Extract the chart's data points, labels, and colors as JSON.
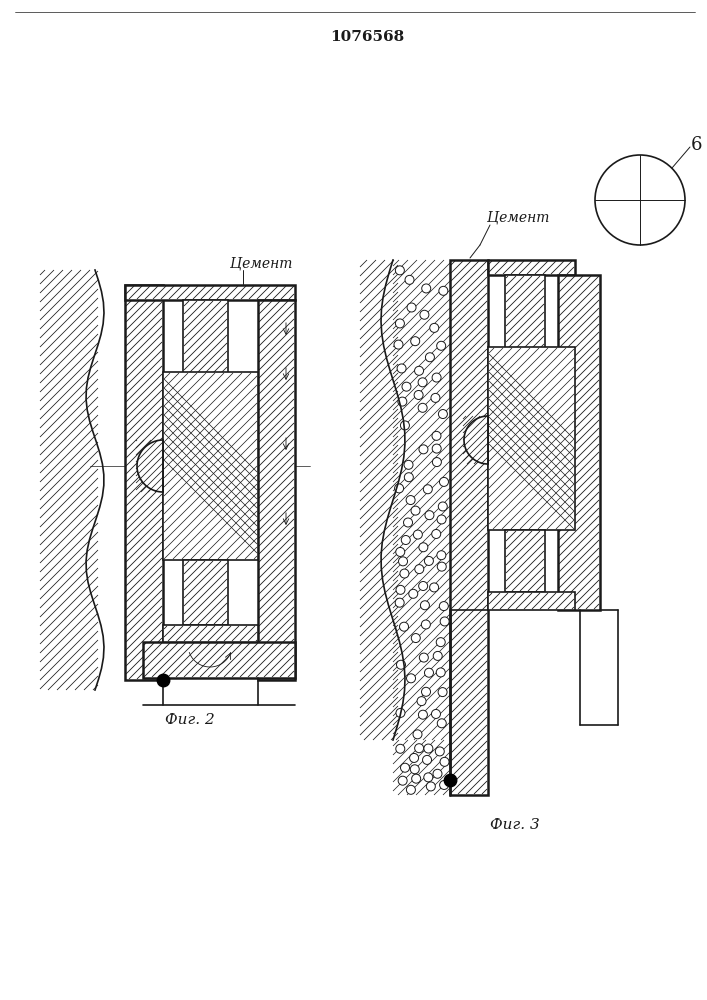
{
  "title": "1076568",
  "fig2_label": "Фиг. 2",
  "fig3_label": "Фиг. 3",
  "cement_label": "Цемент",
  "label_6": "6",
  "bg_color": "#ffffff",
  "line_color": "#1a1a1a",
  "fig_size": [
    7.07,
    10.0
  ],
  "dpi": 100
}
